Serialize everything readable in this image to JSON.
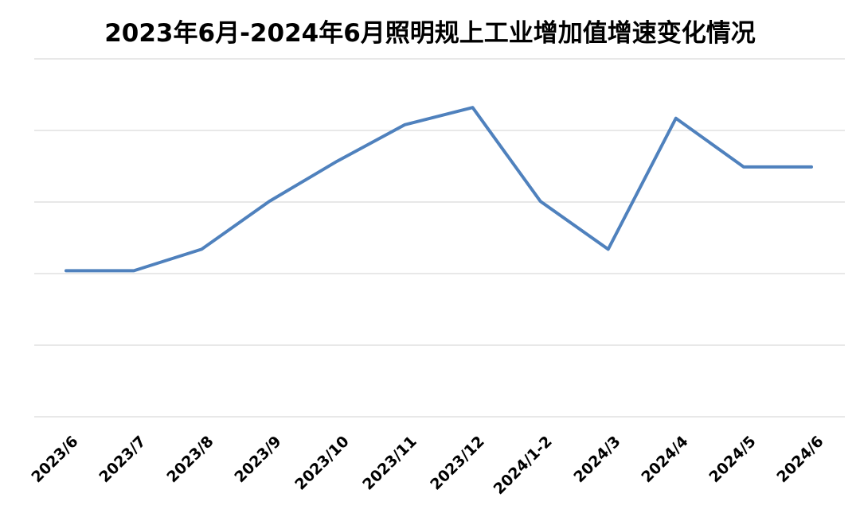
{
  "chart_data": {
    "type": "line",
    "title": "2023年6月-2024年6月照明规上工业增加值增速变化情况",
    "categories": [
      "2023/6",
      "2023/7",
      "2023/8",
      "2023/9",
      "2023/10",
      "2023/11",
      "2023/12",
      "2024/1-2",
      "2024/3",
      "2024/4",
      "2024/5",
      "2024/6"
    ],
    "values": [
      2.04,
      2.04,
      2.34,
      3.01,
      3.57,
      4.08,
      4.32,
      3.01,
      2.34,
      4.17,
      3.49,
      3.49
    ],
    "value_unit_note": "y-axis has no visible tick labels; values estimated in gridline units (bottom gridline = 0, each gridline = 1)",
    "xlabel": "",
    "ylabel": "",
    "ylim": [
      0,
      5
    ],
    "gridline_step": 1,
    "grid": "horizontal",
    "legend": "none",
    "y_axis_labels_visible": false,
    "line_color": "#4F81BD",
    "gridline_color": "#D9D9D9",
    "title_color": "#000000",
    "background_color": "#FFFFFF"
  }
}
